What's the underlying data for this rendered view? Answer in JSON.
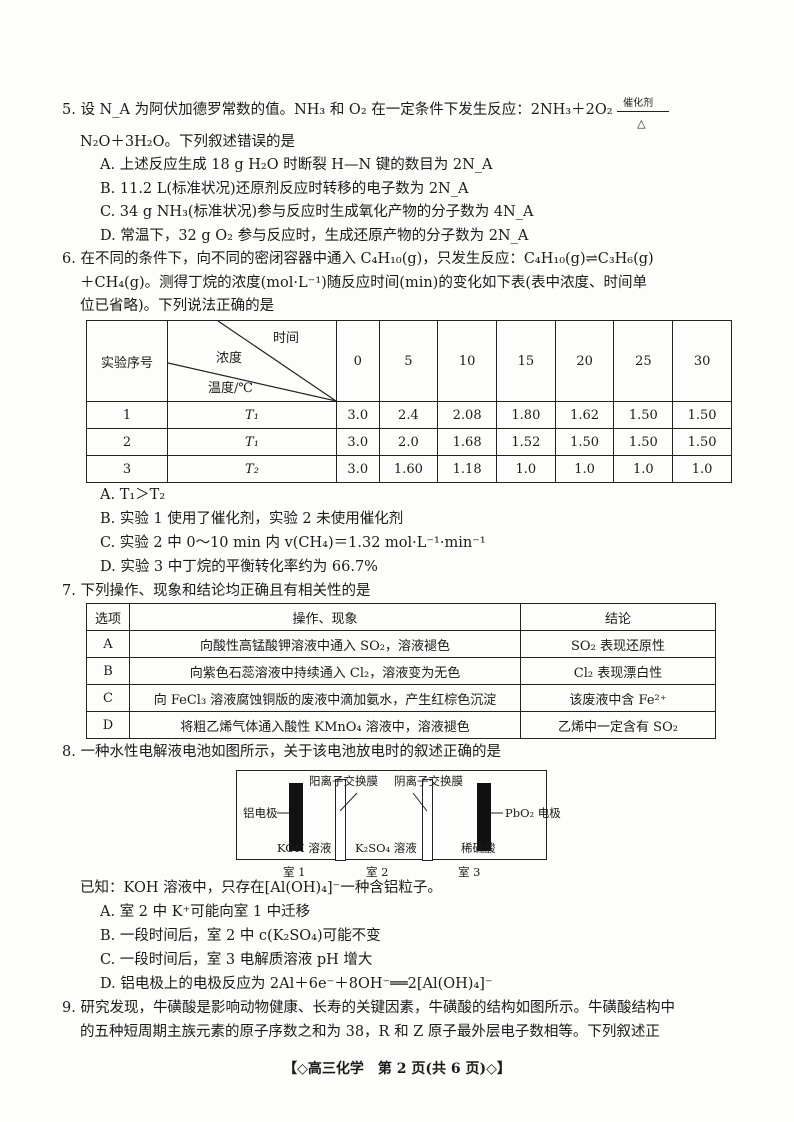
{
  "q5": {
    "line1": "5. 设 N_A 为阿伏加德罗常数的值。NH₃ 和 O₂ 在一定条件下发生反应：2NH₃＋2O₂",
    "catalyst": "催化剂",
    "heat": "△",
    "line2": "N₂O＋3H₂O。下列叙述错误的是",
    "options": [
      "A. 上述反应生成 18 g H₂O 时断裂 H—N 键的数目为 2N_A",
      "B. 11.2 L(标准状况)还原剂反应时转移的电子数为 2N_A",
      "C. 34 g NH₃(标准状况)参与反应时生成氧化产物的分子数为 4N_A",
      "D. 常温下，32 g O₂ 参与反应时，生成还原产物的分子数为 2N_A"
    ]
  },
  "q6": {
    "lines": [
      "6. 在不同的条件下，向不同的密闭容器中通入 C₄H₁₀(g)，只发生反应：C₄H₁₀(g)⇌C₃H₆(g)",
      "＋CH₄(g)。测得丁烷的浓度(mol·L⁻¹)随反应时间(min)的变化如下表(表中浓度、时间单",
      "位已省略)。下列说法正确的是"
    ],
    "table": {
      "header_id": "实验序号",
      "header_time": "时间",
      "header_conc": "浓度",
      "header_temp": "温度/℃",
      "times": [
        "0",
        "5",
        "10",
        "15",
        "20",
        "25",
        "30"
      ],
      "rows": [
        {
          "id": "1",
          "temp": "T₁",
          "values": [
            "3.0",
            "2.4",
            "2.08",
            "1.80",
            "1.62",
            "1.50",
            "1.50"
          ]
        },
        {
          "id": "2",
          "temp": "T₁",
          "values": [
            "3.0",
            "2.0",
            "1.68",
            "1.52",
            "1.50",
            "1.50",
            "1.50"
          ]
        },
        {
          "id": "3",
          "temp": "T₂",
          "values": [
            "3.0",
            "1.60",
            "1.18",
            "1.0",
            "1.0",
            "1.0",
            "1.0"
          ]
        }
      ]
    },
    "options": [
      "A. T₁＞T₂",
      "B. 实验 1 使用了催化剂，实验 2 未使用催化剂",
      "C. 实验 2 中 0～10 min 内 v(CH₄)＝1.32 mol·L⁻¹·min⁻¹",
      "D. 实验 3 中丁烷的平衡转化率约为 66.7%"
    ]
  },
  "q7": {
    "stem": "7. 下列操作、现象和结论均正确且有相关性的是",
    "headers": [
      "选项",
      "操作、现象",
      "结论"
    ],
    "rows": [
      [
        "A",
        "向酸性高锰酸钾溶液中通入 SO₂，溶液褪色",
        "SO₂ 表现还原性"
      ],
      [
        "B",
        "向紫色石蕊溶液中持续通入 Cl₂，溶液变为无色",
        "Cl₂ 表现漂白性"
      ],
      [
        "C",
        "向 FeCl₃ 溶液腐蚀铜版的废液中滴加氨水，产生红棕色沉淀",
        "该废液中含 Fe²⁺"
      ],
      [
        "D",
        "将粗乙烯气体通入酸性 KMnO₄ 溶液中，溶液褪色",
        "乙烯中一定含有 SO₂"
      ]
    ]
  },
  "q8": {
    "stem": "8. 一种水性电解液电池如图所示，关于该电池放电时的叙述正确的是",
    "diagram": {
      "al_electrode": "铝电极",
      "pbo2_electrode": "PbO₂ 电极",
      "cation_membrane": "阳离子交换膜",
      "anion_membrane": "阴离子交换膜",
      "koh": "KOH 溶液",
      "k2so4": "K₂SO₄ 溶液",
      "h2so4": "稀硫酸",
      "rooms": [
        "室 1",
        "室 2",
        "室 3"
      ]
    },
    "known": "已知：KOH 溶液中，只存在[Al(OH)₄]⁻一种含铝粒子。",
    "options": [
      "A. 室 2 中 K⁺可能向室 1 中迁移",
      "B. 一段时间后，室 2 中 c(K₂SO₄)可能不变",
      "C. 一段时间后，室 3 电解质溶液 pH 增大",
      "D. 铝电极上的电极反应为 2Al＋6e⁻＋8OH⁻══2[Al(OH)₄]⁻"
    ]
  },
  "q9": {
    "lines": [
      "9. 研究发现，牛磺酸是影响动物健康、长寿的关键因素，牛磺酸的结构如图所示。牛磺酸结构中",
      "的五种短周期主族元素的原子序数之和为 38，R 和 Z 原子最外层电子数相等。下列叙述正"
    ]
  },
  "footer": "【◇高三化学　第 2 页(共 6 页)◇】"
}
